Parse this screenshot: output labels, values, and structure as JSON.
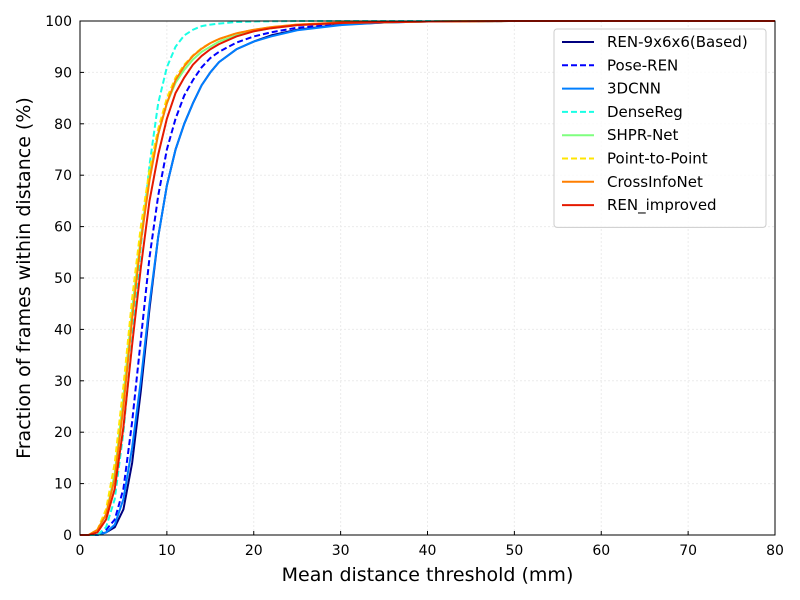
{
  "chart_data": {
    "type": "line",
    "title": "",
    "xlabel": "Mean distance threshold (mm)",
    "ylabel": "Fraction of frames within distance (%)",
    "xlim": [
      0,
      80
    ],
    "ylim": [
      0,
      100
    ],
    "xticks": [
      0,
      10,
      20,
      30,
      40,
      50,
      60,
      70,
      80
    ],
    "yticks": [
      0,
      10,
      20,
      30,
      40,
      50,
      60,
      70,
      80,
      90,
      100
    ],
    "grid": true,
    "legend_position": "top-right",
    "series": [
      {
        "name": "REN-9x6x6(Based)",
        "color": "#00007f",
        "dash": "solid",
        "points": [
          [
            0,
            0
          ],
          [
            2,
            0
          ],
          [
            3,
            0.5
          ],
          [
            4,
            1.5
          ],
          [
            5,
            5
          ],
          [
            6,
            14
          ],
          [
            7,
            28
          ],
          [
            8,
            44
          ],
          [
            9,
            58
          ],
          [
            10,
            68
          ],
          [
            11,
            75
          ],
          [
            12,
            80
          ],
          [
            13,
            84
          ],
          [
            14,
            87.5
          ],
          [
            15,
            90
          ],
          [
            16,
            92
          ],
          [
            18,
            94.5
          ],
          [
            20,
            96
          ],
          [
            22,
            97.2
          ],
          [
            25,
            98.3
          ],
          [
            30,
            99.3
          ],
          [
            35,
            99.7
          ],
          [
            40,
            99.9
          ],
          [
            50,
            100
          ],
          [
            80,
            100
          ]
        ]
      },
      {
        "name": "Pose-REN",
        "color": "#0000ff",
        "dash": "dashed",
        "points": [
          [
            0,
            0
          ],
          [
            2,
            0
          ],
          [
            3,
            1
          ],
          [
            4,
            3
          ],
          [
            5,
            9
          ],
          [
            6,
            22
          ],
          [
            7,
            38
          ],
          [
            8,
            54
          ],
          [
            9,
            66
          ],
          [
            10,
            75
          ],
          [
            11,
            81
          ],
          [
            12,
            85.5
          ],
          [
            13,
            88.5
          ],
          [
            14,
            91
          ],
          [
            15,
            92.8
          ],
          [
            16,
            94
          ],
          [
            18,
            95.8
          ],
          [
            20,
            97
          ],
          [
            22,
            97.8
          ],
          [
            25,
            98.7
          ],
          [
            30,
            99.4
          ],
          [
            35,
            99.8
          ],
          [
            40,
            99.9
          ],
          [
            50,
            100
          ],
          [
            80,
            100
          ]
        ]
      },
      {
        "name": "3DCNN",
        "color": "#007fff",
        "dash": "solid",
        "points": [
          [
            0,
            0
          ],
          [
            2,
            0
          ],
          [
            3,
            0.5
          ],
          [
            4,
            2
          ],
          [
            5,
            7
          ],
          [
            6,
            17
          ],
          [
            7,
            30
          ],
          [
            8,
            45
          ],
          [
            9,
            58
          ],
          [
            10,
            68
          ],
          [
            11,
            75
          ],
          [
            12,
            80
          ],
          [
            13,
            84
          ],
          [
            14,
            87.5
          ],
          [
            15,
            90
          ],
          [
            16,
            92
          ],
          [
            18,
            94.5
          ],
          [
            20,
            96
          ],
          [
            22,
            97
          ],
          [
            25,
            98.2
          ],
          [
            30,
            99.2
          ],
          [
            35,
            99.7
          ],
          [
            40,
            99.9
          ],
          [
            50,
            100
          ],
          [
            80,
            100
          ]
        ]
      },
      {
        "name": "DenseReg",
        "color": "#19ffe5",
        "dash": "dashed",
        "points": [
          [
            0,
            0
          ],
          [
            2,
            0
          ],
          [
            3,
            1.5
          ],
          [
            4,
            7
          ],
          [
            5,
            20
          ],
          [
            6,
            38
          ],
          [
            7,
            56
          ],
          [
            8,
            72
          ],
          [
            9,
            84
          ],
          [
            10,
            91
          ],
          [
            11,
            95
          ],
          [
            12,
            97.2
          ],
          [
            13,
            98.3
          ],
          [
            14,
            99
          ],
          [
            15,
            99.3
          ],
          [
            16,
            99.5
          ],
          [
            18,
            99.8
          ],
          [
            20,
            99.9
          ],
          [
            25,
            100
          ],
          [
            80,
            100
          ]
        ]
      },
      {
        "name": "SHPR-Net",
        "color": "#7fff7f",
        "dash": "solid",
        "points": [
          [
            0,
            0
          ],
          [
            1,
            0
          ],
          [
            2,
            1
          ],
          [
            3,
            4
          ],
          [
            4,
            12
          ],
          [
            5,
            27
          ],
          [
            6,
            44
          ],
          [
            7,
            58
          ],
          [
            8,
            70
          ],
          [
            9,
            78
          ],
          [
            10,
            84
          ],
          [
            11,
            88
          ],
          [
            12,
            90.5
          ],
          [
            13,
            92.5
          ],
          [
            14,
            94
          ],
          [
            15,
            95
          ],
          [
            16,
            96
          ],
          [
            18,
            97.2
          ],
          [
            20,
            98
          ],
          [
            22,
            98.6
          ],
          [
            25,
            99.2
          ],
          [
            30,
            99.6
          ],
          [
            40,
            99.9
          ],
          [
            50,
            100
          ],
          [
            80,
            100
          ]
        ]
      },
      {
        "name": "Point-to-Point",
        "color": "#ffe500",
        "dash": "dashed",
        "points": [
          [
            0,
            0
          ],
          [
            1,
            0
          ],
          [
            2,
            1
          ],
          [
            3,
            5
          ],
          [
            4,
            14
          ],
          [
            5,
            29
          ],
          [
            6,
            46
          ],
          [
            7,
            60
          ],
          [
            8,
            71
          ],
          [
            9,
            79
          ],
          [
            10,
            85
          ],
          [
            11,
            89
          ],
          [
            12,
            91.5
          ],
          [
            13,
            93.3
          ],
          [
            14,
            94.7
          ],
          [
            15,
            95.7
          ],
          [
            16,
            96.5
          ],
          [
            18,
            97.6
          ],
          [
            20,
            98.3
          ],
          [
            22,
            98.8
          ],
          [
            25,
            99.3
          ],
          [
            30,
            99.7
          ],
          [
            40,
            99.9
          ],
          [
            50,
            100
          ],
          [
            80,
            100
          ]
        ]
      },
      {
        "name": "CrossInfoNet",
        "color": "#ff7f00",
        "dash": "solid",
        "points": [
          [
            0,
            0
          ],
          [
            1,
            0
          ],
          [
            2,
            1
          ],
          [
            3,
            4
          ],
          [
            4,
            11
          ],
          [
            5,
            25
          ],
          [
            6,
            42
          ],
          [
            7,
            57
          ],
          [
            8,
            69
          ],
          [
            9,
            78
          ],
          [
            10,
            84
          ],
          [
            11,
            88.5
          ],
          [
            12,
            91.2
          ],
          [
            13,
            93.2
          ],
          [
            14,
            94.6
          ],
          [
            15,
            95.7
          ],
          [
            16,
            96.5
          ],
          [
            18,
            97.6
          ],
          [
            20,
            98.3
          ],
          [
            22,
            98.8
          ],
          [
            25,
            99.3
          ],
          [
            30,
            99.7
          ],
          [
            40,
            99.9
          ],
          [
            50,
            100
          ],
          [
            80,
            100
          ]
        ]
      },
      {
        "name": "REN_improved",
        "color": "#e51900",
        "dash": "solid",
        "points": [
          [
            0,
            0
          ],
          [
            1,
            0
          ],
          [
            2,
            0.5
          ],
          [
            3,
            3
          ],
          [
            4,
            9
          ],
          [
            5,
            21
          ],
          [
            6,
            37
          ],
          [
            7,
            52
          ],
          [
            8,
            65
          ],
          [
            9,
            74
          ],
          [
            10,
            81
          ],
          [
            11,
            86
          ],
          [
            12,
            89
          ],
          [
            13,
            91.5
          ],
          [
            14,
            93.2
          ],
          [
            15,
            94.5
          ],
          [
            16,
            95.5
          ],
          [
            18,
            97
          ],
          [
            20,
            98
          ],
          [
            22,
            98.6
          ],
          [
            25,
            99.2
          ],
          [
            30,
            99.6
          ],
          [
            40,
            99.9
          ],
          [
            50,
            100
          ],
          [
            80,
            100
          ]
        ]
      }
    ]
  }
}
